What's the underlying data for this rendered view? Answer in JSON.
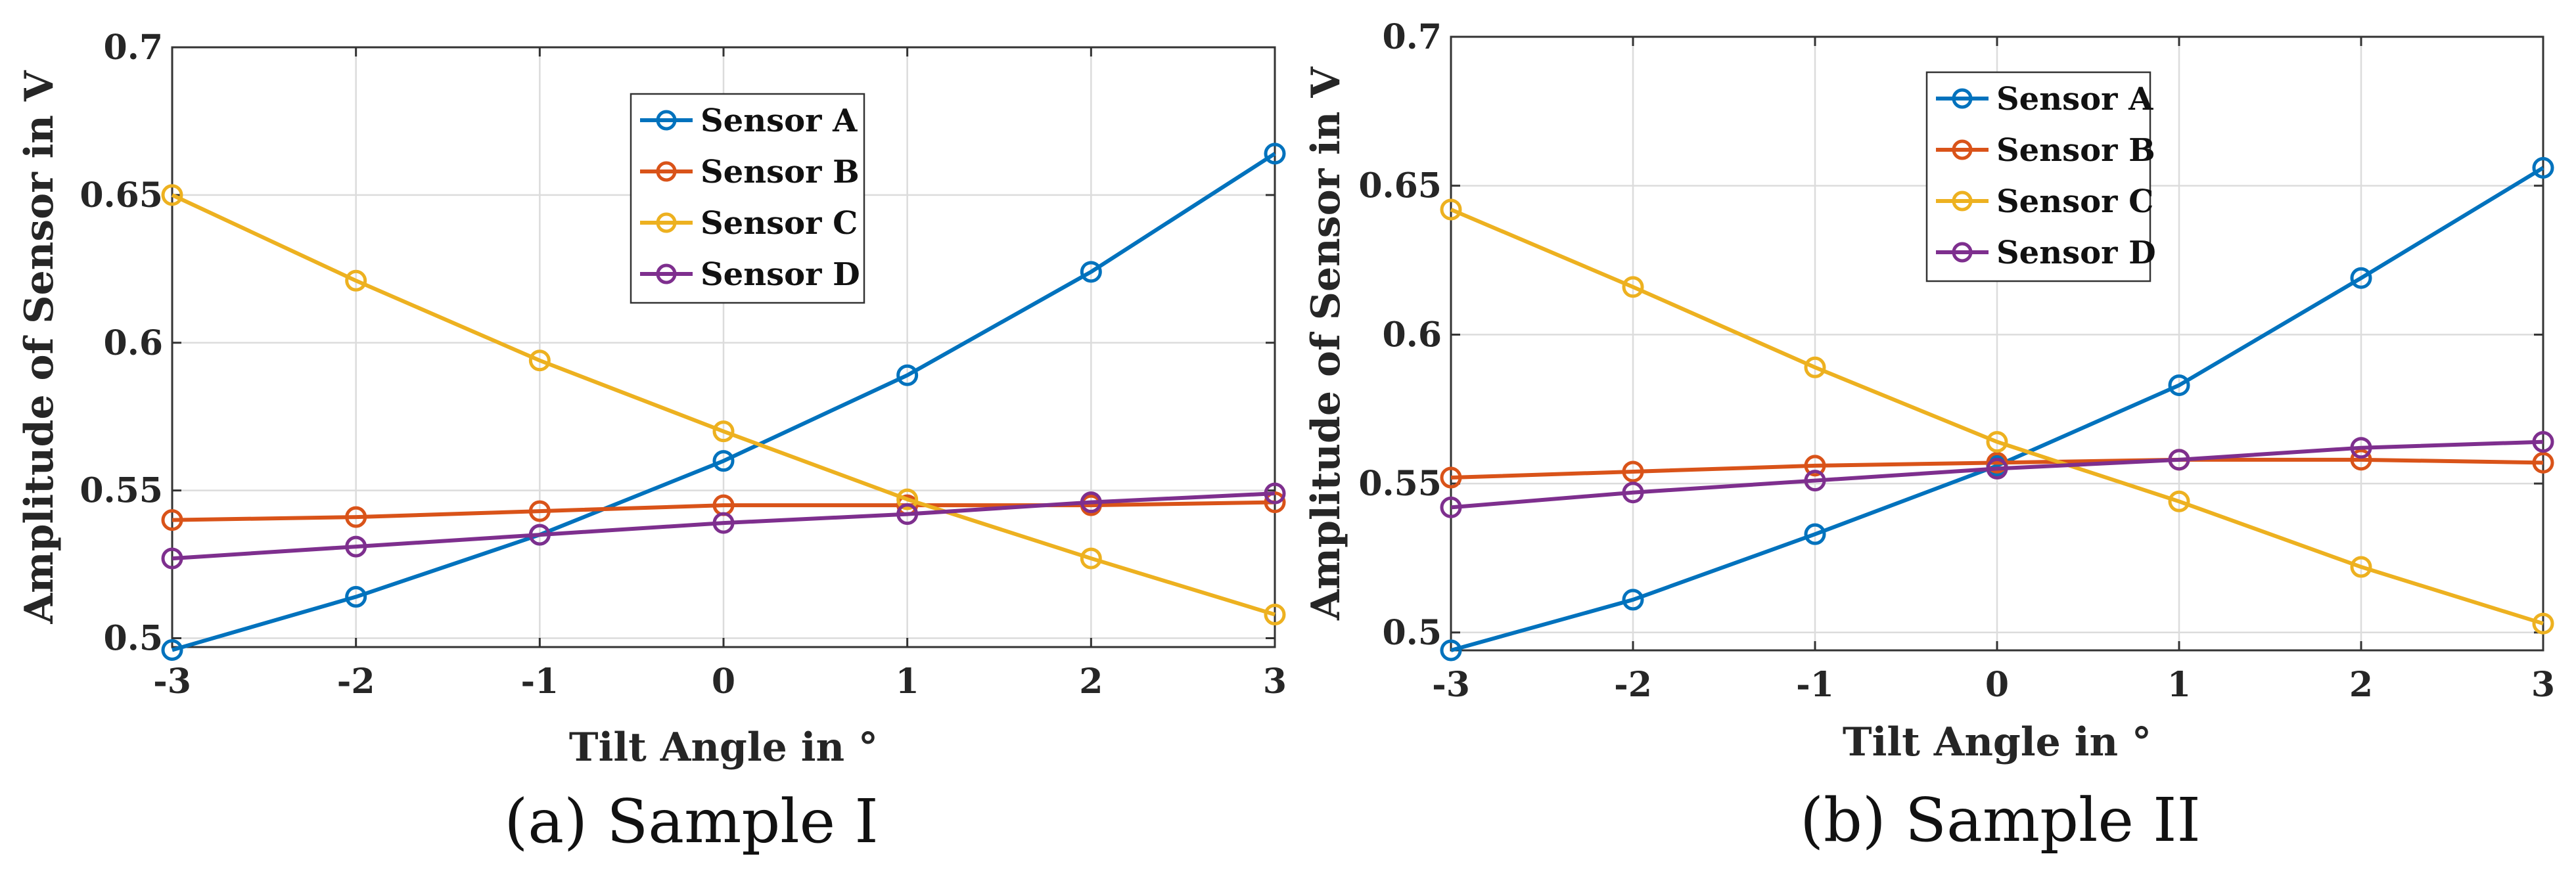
{
  "chart_data": [
    {
      "type": "line",
      "caption": "(a) Sample I",
      "title": "",
      "xlabel": "Tilt Angle in °",
      "ylabel": "Amplitude of Sensor in V",
      "x": [
        -3,
        -2,
        -1,
        0,
        1,
        2,
        3
      ],
      "x_tick_labels": [
        "-3",
        "-2",
        "-1",
        "0",
        "1",
        "2",
        "3"
      ],
      "y_ticks": [
        0.5,
        0.55,
        0.6,
        0.65,
        0.7
      ],
      "y_tick_labels": [
        "0.5",
        "0.55",
        "0.6",
        "0.65",
        "0.7"
      ],
      "xlim": [
        -3,
        3
      ],
      "ylim": [
        0.497,
        0.7
      ],
      "grid": true,
      "legend_position": "top-center",
      "series": [
        {
          "name": "Sensor A",
          "color": "#0072BD",
          "values": [
            0.496,
            0.514,
            0.535,
            0.56,
            0.589,
            0.624,
            0.664
          ]
        },
        {
          "name": "Sensor B",
          "color": "#D95319",
          "values": [
            0.54,
            0.541,
            0.543,
            0.545,
            0.545,
            0.545,
            0.546
          ]
        },
        {
          "name": "Sensor C",
          "color": "#EDB120",
          "values": [
            0.65,
            0.621,
            0.594,
            0.57,
            0.547,
            0.527,
            0.508
          ]
        },
        {
          "name": "Sensor D",
          "color": "#7E2F8E",
          "values": [
            0.527,
            0.531,
            0.535,
            0.539,
            0.542,
            0.546,
            0.549
          ]
        }
      ]
    },
    {
      "type": "line",
      "caption": "(b) Sample II",
      "title": "",
      "xlabel": "Tilt Angle in °",
      "ylabel": "Amplitude of Sensor in V",
      "x": [
        -3,
        -2,
        -1,
        0,
        1,
        2,
        3
      ],
      "x_tick_labels": [
        "-3",
        "-2",
        "-1",
        "0",
        "1",
        "2",
        "3"
      ],
      "y_ticks": [
        0.5,
        0.55,
        0.6,
        0.65,
        0.7
      ],
      "y_tick_labels": [
        "0.5",
        "0.55",
        "0.6",
        "0.65",
        "0.7"
      ],
      "xlim": [
        -3,
        3
      ],
      "ylim": [
        0.494,
        0.7
      ],
      "grid": true,
      "legend_position": "top-center",
      "series": [
        {
          "name": "Sensor A",
          "color": "#0072BD",
          "values": [
            0.494,
            0.511,
            0.533,
            0.556,
            0.583,
            0.619,
            0.656
          ]
        },
        {
          "name": "Sensor B",
          "color": "#D95319",
          "values": [
            0.552,
            0.554,
            0.556,
            0.557,
            0.558,
            0.558,
            0.557
          ]
        },
        {
          "name": "Sensor C",
          "color": "#EDB120",
          "values": [
            0.642,
            0.616,
            0.589,
            0.564,
            0.544,
            0.522,
            0.503
          ]
        },
        {
          "name": "Sensor D",
          "color": "#7E2F8E",
          "values": [
            0.542,
            0.547,
            0.551,
            0.555,
            0.558,
            0.562,
            0.564
          ]
        }
      ]
    }
  ]
}
